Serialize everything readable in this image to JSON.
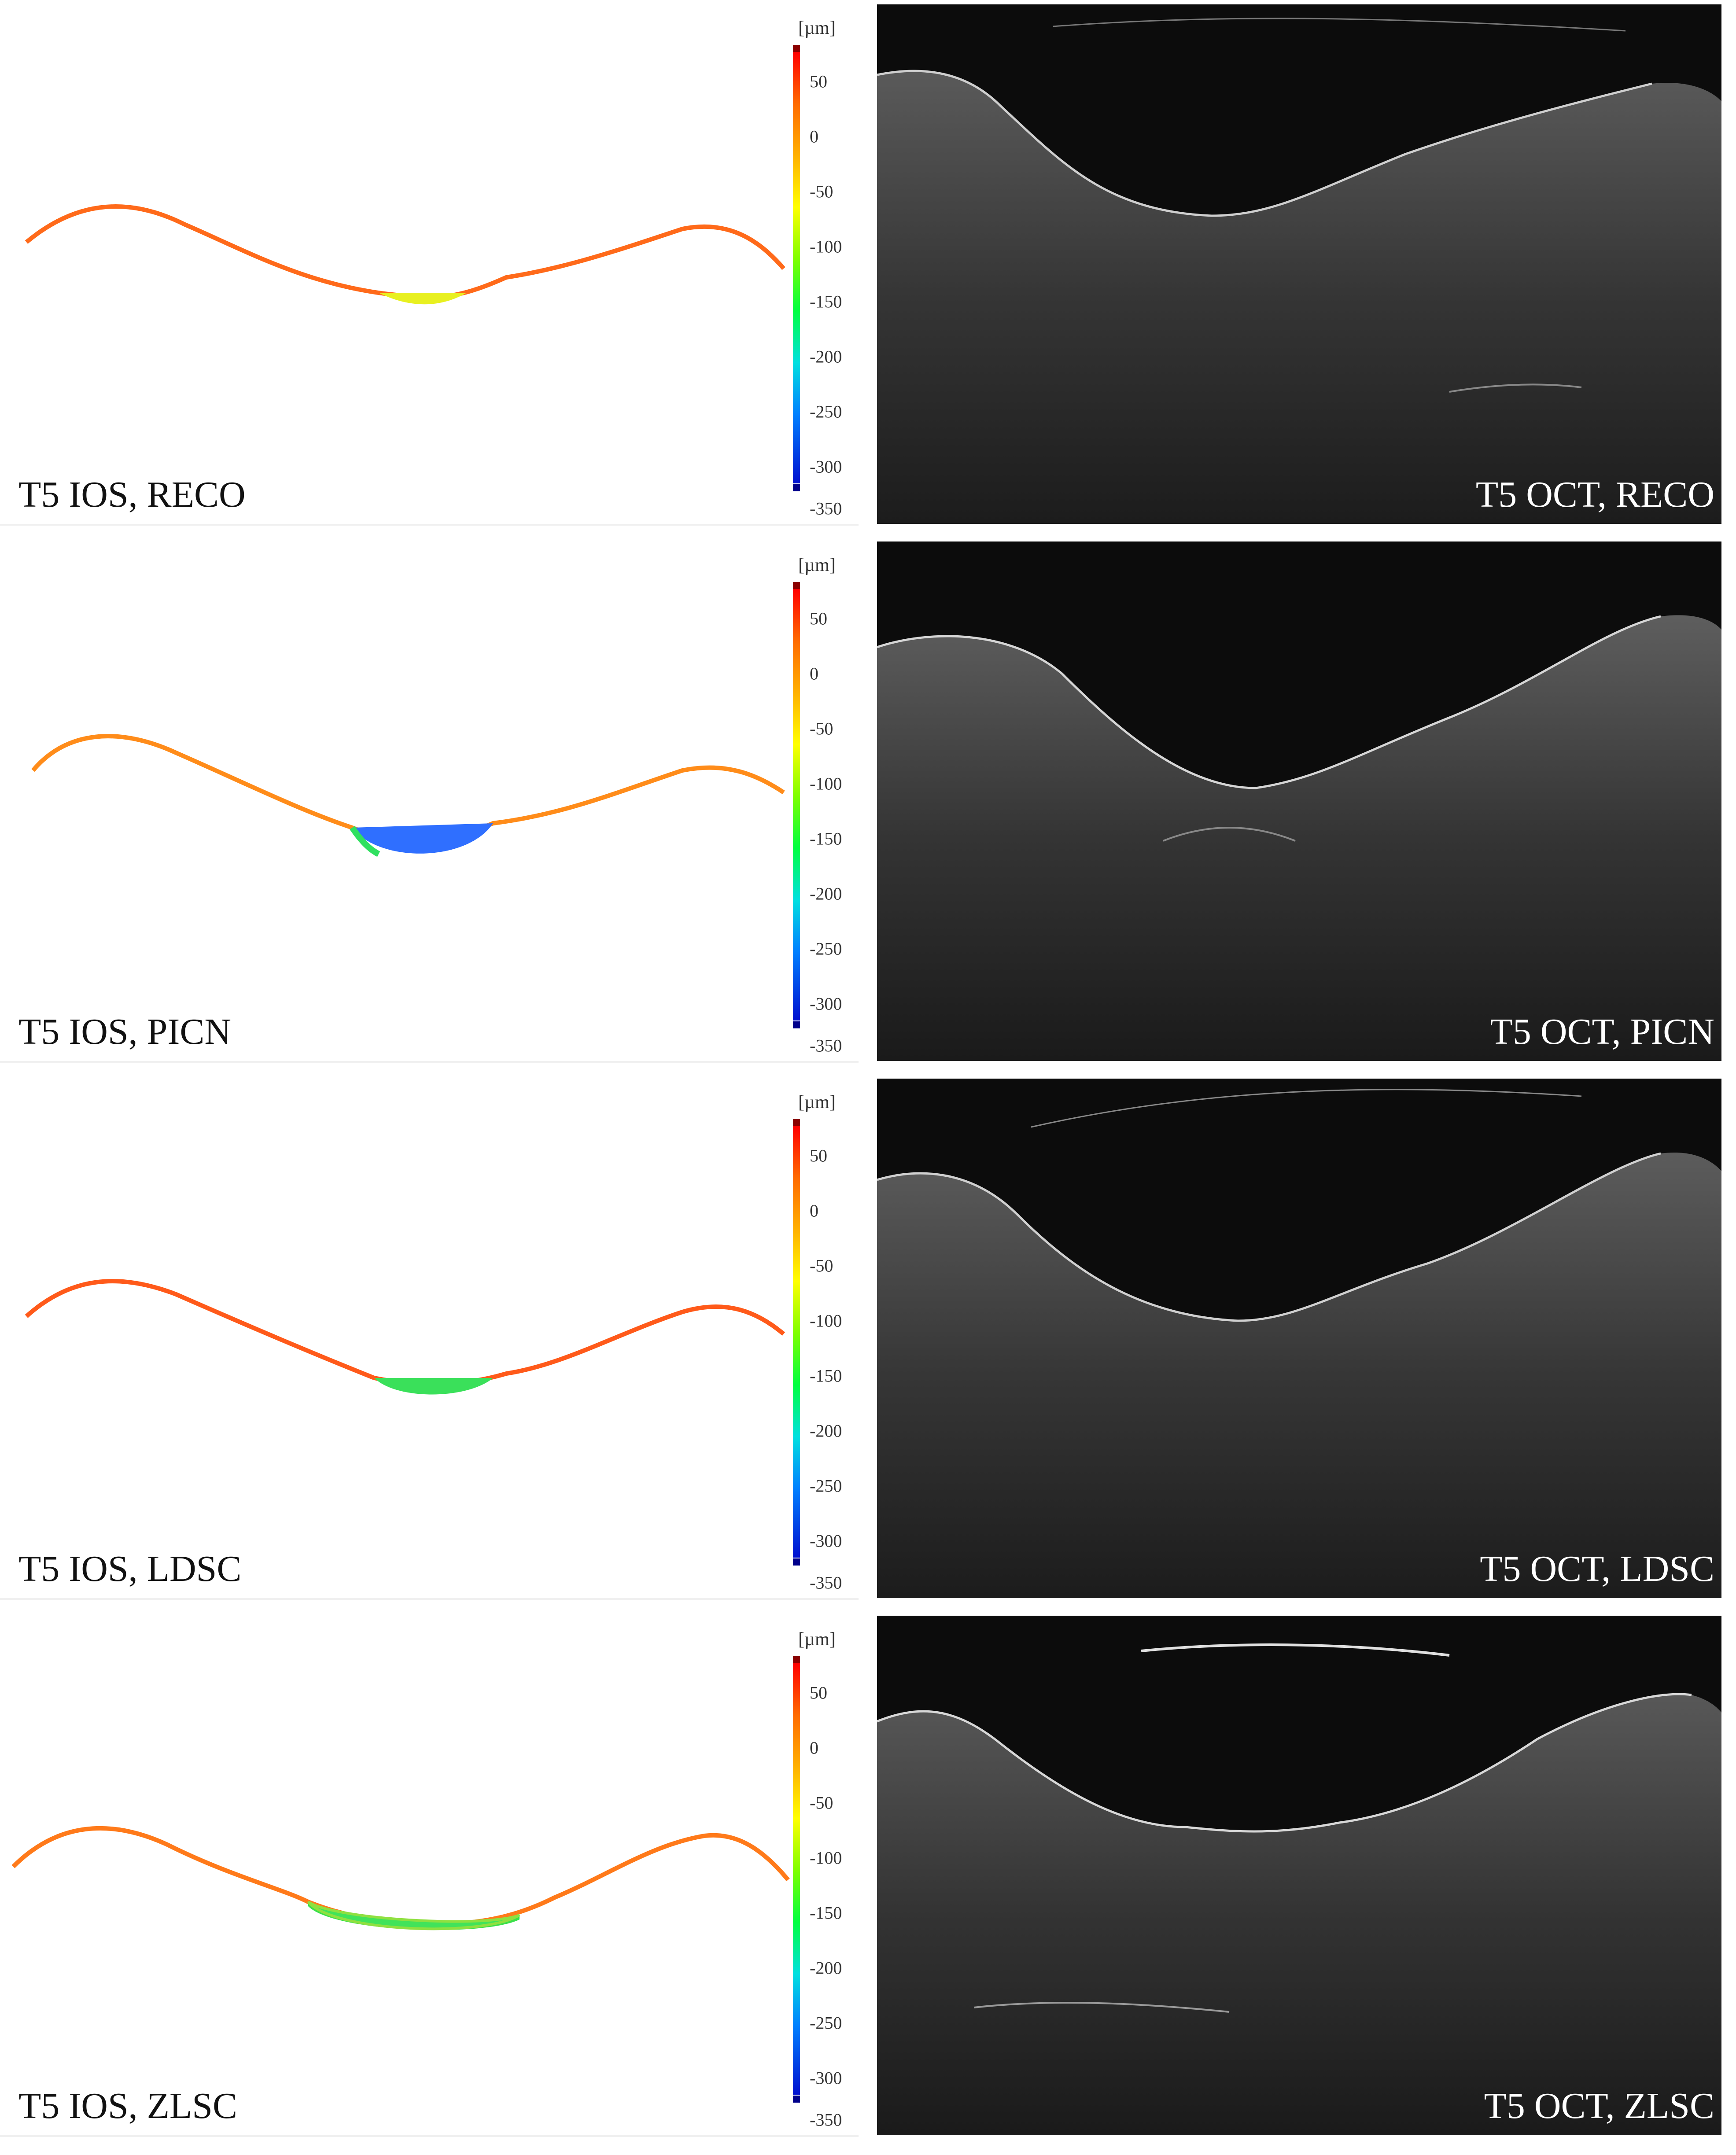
{
  "scale": {
    "unit": "[µm]",
    "ticks": [
      "50",
      "0",
      "-50",
      "-100",
      "-150",
      "-200",
      "-250",
      "-300",
      "-350"
    ],
    "colors": {
      "top_cap": "#8b0000",
      "bottom_cap": "#00008b"
    }
  },
  "panels": [
    {
      "ios_label": "T5 IOS, RECO",
      "oct_label": "T5 OCT, RECO"
    },
    {
      "ios_label": "T5 IOS, PICN",
      "oct_label": "T5 OCT, PICN"
    },
    {
      "ios_label": "T5 IOS, LDSC",
      "oct_label": "T5 OCT, LDSC"
    },
    {
      "ios_label": "T5 IOS, ZLSC",
      "oct_label": "T5 OCT, ZLSC"
    }
  ]
}
